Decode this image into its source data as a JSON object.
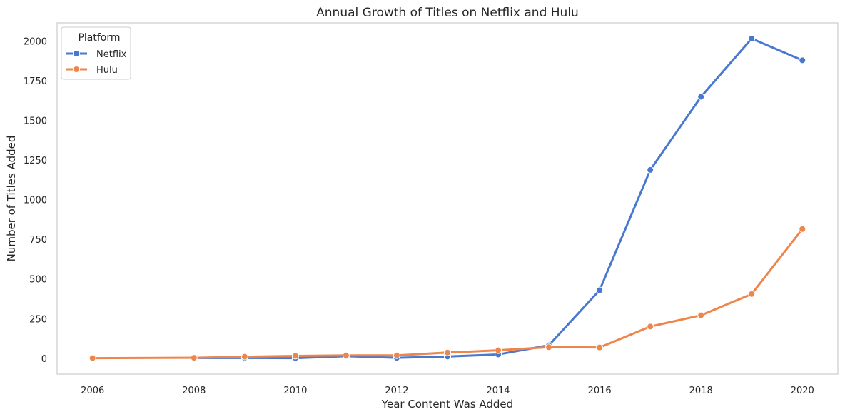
{
  "chart_data": {
    "type": "line",
    "title": "Annual Growth of Titles on Netflix and Hulu",
    "xlabel": "Year Content Was Added",
    "ylabel": "Number of Titles Added",
    "xlim": [
      2005.3,
      2020.7
    ],
    "ylim": [
      -100,
      2115
    ],
    "xticks": [
      2006,
      2008,
      2010,
      2012,
      2014,
      2016,
      2018,
      2020
    ],
    "yticks": [
      0,
      250,
      500,
      750,
      1000,
      1250,
      1500,
      1750,
      2000
    ],
    "grid": false,
    "legend": {
      "title": "Platform",
      "placement": "top-left"
    },
    "series": [
      {
        "name": "Netflix",
        "color": "#4878d0",
        "x": [
          2008,
          2009,
          2010,
          2011,
          2012,
          2013,
          2014,
          2015,
          2016,
          2017,
          2018,
          2019,
          2020
        ],
        "y": [
          2,
          2,
          1,
          13,
          3,
          11,
          24,
          82,
          429,
          1188,
          1649,
          2016,
          1879
        ]
      },
      {
        "name": "Hulu",
        "color": "#ee854a",
        "x": [
          2006,
          2008,
          2009,
          2010,
          2011,
          2012,
          2013,
          2014,
          2015,
          2016,
          2017,
          2018,
          2019,
          2020
        ],
        "y": [
          1,
          3,
          10,
          15,
          18,
          18,
          36,
          50,
          70,
          68,
          200,
          271,
          405,
          815
        ]
      }
    ]
  }
}
